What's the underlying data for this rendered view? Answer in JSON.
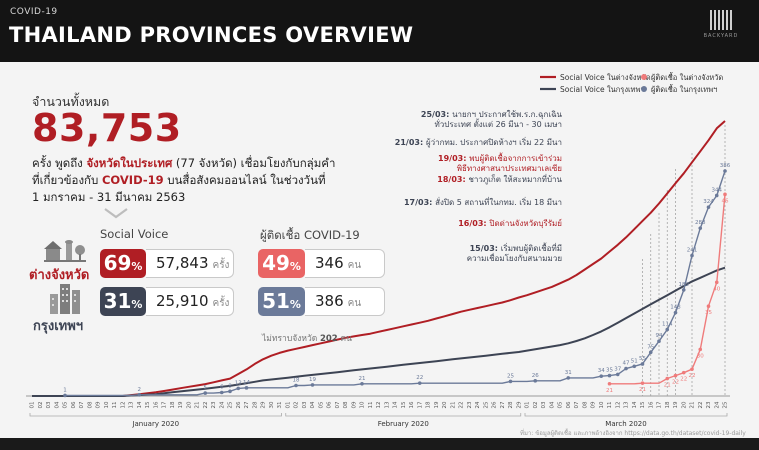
{
  "header": {
    "category": "COVID-19",
    "title": "THAILAND PROVINCES OVERVIEW",
    "brand": "BACKYARD"
  },
  "summary": {
    "total_label": "จำนวนทั้งหมด",
    "total": "83,753",
    "desc_line1_a": "ครั้ง พูดถึง ",
    "desc_line1_b": "จังหวัดในประเทศ",
    "desc_line1_c": " (77 จังหวัด) เชื่อมโยงกับกลุ่มคำ",
    "desc_line2_a": "ที่เกี่ยวข้องกับ ",
    "desc_line2_b": "COVID-19",
    "desc_line2_c": " บนสื่อสังคมออนไลน์ ในช่วงวันที่",
    "desc_line3": "1 มกราคม - 31 มีนาคม 2563"
  },
  "stats": {
    "social_header": "Social Voice",
    "covid_header": "ผู้ติดเชื้อ COVID-19",
    "provinces_label": "ต่างจังหวัด",
    "bangkok_label": "กรุงเทพฯ",
    "pct_symbol": "%",
    "prov_social_pct": "69",
    "prov_social_val": "57,843",
    "bkk_social_pct": "31",
    "bkk_social_val": "25,910",
    "social_unit": "ครั้ง",
    "prov_case_pct": "49",
    "prov_case_val": "346",
    "bkk_case_pct": "51",
    "bkk_case_val": "386",
    "case_unit": "คน",
    "note_a": "ไม่ทราบจังหวัด ",
    "note_b": "202",
    "note_c": " คน"
  },
  "colors": {
    "red": "#b01e24",
    "dark": "#3d4454",
    "salmon": "#ef7b7b",
    "slate": "#6b7a99"
  },
  "chart_data": {
    "type": "line",
    "x_start": "2020-01-01",
    "x": [
      1,
      2,
      3,
      4,
      5,
      6,
      7,
      8,
      9,
      10,
      11,
      12,
      13,
      14,
      15,
      16,
      17,
      18,
      19,
      20,
      21,
      22,
      23,
      24,
      25,
      26,
      27,
      28,
      29,
      30,
      31,
      1,
      2,
      3,
      4,
      5,
      6,
      7,
      8,
      9,
      10,
      11,
      12,
      13,
      14,
      15,
      16,
      17,
      18,
      19,
      20,
      21,
      22,
      23,
      24,
      25,
      26,
      27,
      28,
      29,
      1,
      2,
      3,
      4,
      5,
      6,
      7,
      8,
      9,
      10,
      11,
      12,
      13,
      14,
      15,
      16,
      17,
      18,
      19,
      20,
      21,
      22,
      23,
      24,
      25
    ],
    "month_labels": [
      "January 2020",
      "February 2020",
      "March 2020"
    ],
    "legend": [
      "Social Voice ในต่างจังหวัด",
      "Social Voice ในกรุงเทพฯ",
      "ผู้ติดเชื้อ ในต่างจังหวัด",
      "ผู้ติดเชื้อ ในกรุงเทพฯ"
    ],
    "series": [
      {
        "name": "Social Voice ในต่างจังหวัด",
        "axis": "left",
        "values": [
          0,
          0,
          0,
          0,
          0,
          0,
          0,
          0,
          0,
          0,
          0,
          0,
          20,
          40,
          60,
          80,
          110,
          140,
          170,
          200,
          230,
          260,
          300,
          340,
          380,
          480,
          580,
          700,
          800,
          880,
          940,
          990,
          1030,
          1070,
          1110,
          1150,
          1190,
          1230,
          1270,
          1300,
          1330,
          1360,
          1400,
          1440,
          1480,
          1520,
          1560,
          1600,
          1640,
          1690,
          1740,
          1790,
          1840,
          1880,
          1920,
          1960,
          2000,
          2040,
          2090,
          2150,
          2200,
          2260,
          2320,
          2380,
          2460,
          2540,
          2640,
          2760,
          2880,
          3000,
          3150,
          3300,
          3460,
          3640,
          3820,
          4000,
          4200,
          4420,
          4640,
          4860,
          5100,
          5340,
          5580,
          5840,
          6000
        ]
      },
      {
        "name": "Social Voice ในกรุงเทพฯ",
        "axis": "left",
        "values": [
          0,
          0,
          0,
          0,
          0,
          0,
          0,
          0,
          0,
          0,
          0,
          0,
          10,
          20,
          30,
          40,
          60,
          80,
          100,
          120,
          140,
          160,
          180,
          200,
          220,
          250,
          280,
          310,
          340,
          360,
          380,
          400,
          420,
          440,
          460,
          480,
          500,
          520,
          540,
          560,
          580,
          600,
          620,
          640,
          660,
          680,
          700,
          720,
          740,
          760,
          780,
          800,
          820,
          840,
          860,
          880,
          900,
          920,
          940,
          960,
          990,
          1020,
          1050,
          1080,
          1110,
          1150,
          1200,
          1260,
          1330,
          1410,
          1500,
          1600,
          1700,
          1800,
          1900,
          2000,
          2100,
          2200,
          2300,
          2400,
          2500,
          2580,
          2660,
          2740,
          2800
        ]
      },
      {
        "name": "ผู้ติดเชื้อ ในต่างจังหวัด",
        "axis": "right",
        "values": [
          0,
          0,
          0,
          0,
          0,
          0,
          0,
          0,
          0,
          0,
          0,
          0,
          0,
          0,
          0,
          0,
          0,
          0,
          0,
          0,
          0,
          0,
          0,
          0,
          0,
          0,
          0,
          0,
          0,
          0,
          0,
          0,
          0,
          0,
          0,
          0,
          0,
          0,
          0,
          0,
          0,
          0,
          0,
          0,
          0,
          0,
          0,
          0,
          0,
          0,
          0,
          0,
          0,
          0,
          0,
          0,
          0,
          0,
          0,
          0,
          0,
          0,
          0,
          0,
          0,
          0,
          0,
          0,
          0,
          0,
          21,
          21,
          21,
          21,
          22,
          22,
          22,
          30,
          35,
          40,
          46,
          80,
          154,
          195,
          346
        ]
      },
      {
        "name": "ผู้ติดเชื้อ ในกรุงเทพฯ",
        "axis": "right",
        "values": [
          0,
          0,
          0,
          0,
          1,
          1,
          1,
          1,
          1,
          1,
          1,
          1,
          1,
          2,
          2,
          2,
          2,
          2,
          2,
          2,
          2,
          5,
          5,
          6,
          8,
          13,
          14,
          14,
          14,
          14,
          14,
          14,
          18,
          18,
          19,
          19,
          19,
          19,
          19,
          19,
          21,
          21,
          21,
          21,
          21,
          21,
          21,
          22,
          22,
          22,
          22,
          22,
          22,
          22,
          22,
          22,
          22,
          22,
          25,
          25,
          25,
          26,
          26,
          26,
          26,
          31,
          31,
          31,
          31,
          34,
          35,
          37,
          47,
          51,
          55,
          75,
          94,
          114,
          143,
          182,
          241,
          288,
          324,
          344,
          386
        ]
      }
    ],
    "point_labels_provinces": [
      21,
      21,
      21,
      22,
      22,
      22,
      30,
      35,
      40,
      46,
      80,
      154,
      195,
      346
    ],
    "point_labels_bangkok": [
      1,
      2,
      5,
      6,
      8,
      13,
      14,
      18,
      19,
      21,
      22,
      25,
      26,
      31,
      34,
      35,
      37,
      47,
      51,
      55,
      75,
      94,
      114,
      143,
      182,
      241,
      288,
      324,
      344,
      386
    ],
    "annotations": [
      {
        "date": "25/03:",
        "text": "นายกฯ ประกาศใช้พ.ร.ก.ฉุกเฉิน",
        "text2": "ทั่วประเทศ ตั้งแต่ 26 มีนา - 30 เมษา"
      },
      {
        "date": "21/03:",
        "text": "ผู้ว่ากทม. ประกาศปิดห้างฯ เริ่ม 22 มีนา",
        "text2": ""
      },
      {
        "date": "19/03:",
        "text": "พบผู้ติดเชื้อจากการเข้าร่วม",
        "text2": "พิธีทางศาสนาประเทศมาเลเซีย"
      },
      {
        "date": "18/03:",
        "text": "ชาวภูเก็ต ให้สะหมากที่บ้าน",
        "text2": ""
      },
      {
        "date": "17/03:",
        "text": "สั่งปิด 5 สถานที่ในกทม. เริ่ม 18 มีนา",
        "text2": ""
      },
      {
        "date": "16/03:",
        "text": "ปิดด่านจังหวัดบุรีรัมย์",
        "text2": ""
      },
      {
        "date": "15/03:",
        "text": "เริ่มพบผู้ติดเชื้อที่มี",
        "text2": "ความเชื่อมโยงกับสนามมวย"
      }
    ],
    "source": "ที่มา: ข้อมูลผู้ติดเชื้อ และภาพอ้างอิงจาก https://data.go.th/dataset/covid-19-daily"
  }
}
